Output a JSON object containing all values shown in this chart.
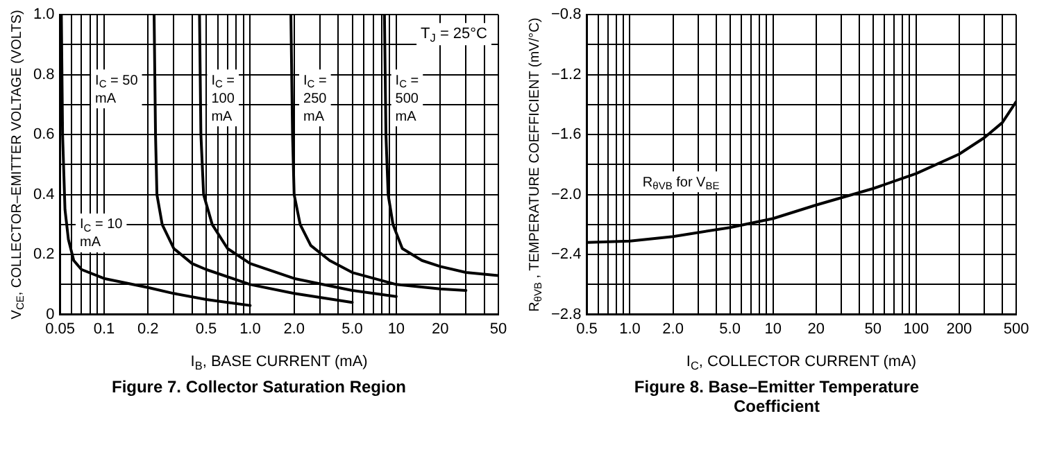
{
  "chart_data": [
    {
      "type": "line",
      "title": "Figure 7. Collector Saturation Region",
      "xlabel": "I$_{B}$, BASE CURRENT (mA)",
      "ylabel": "V$_{CE}$, COLLECTOR–EMITTER VOLTAGE (VOLTS)",
      "log": "x",
      "grid": true,
      "legend": false,
      "xlim": [
        0.05,
        50
      ],
      "xticks": [
        0.05,
        {
          "value": 0.06,
          "label": null
        },
        {
          "value": 0.07,
          "label": null
        },
        {
          "value": 0.08,
          "label": null
        },
        {
          "value": 0.09,
          "label": null
        },
        0.1,
        0.2,
        {
          "value": 0.3,
          "label": null
        },
        {
          "value": 0.4,
          "label": null
        },
        0.5,
        {
          "value": 0.6,
          "label": null
        },
        {
          "value": 0.7,
          "label": null
        },
        {
          "value": 0.8,
          "label": null
        },
        {
          "value": 0.9,
          "label": null
        },
        {
          "value": 1,
          "label": "1.0"
        },
        {
          "value": 2,
          "label": "2.0"
        },
        {
          "value": 3,
          "label": null
        },
        {
          "value": 4,
          "label": null
        },
        {
          "value": 5,
          "label": "5.0"
        },
        {
          "value": 6,
          "label": null
        },
        {
          "value": 7,
          "label": null
        },
        {
          "value": 8,
          "label": null
        },
        {
          "value": 9,
          "label": null
        },
        10,
        20,
        {
          "value": 30,
          "label": null
        },
        {
          "value": 40,
          "label": null
        },
        50
      ],
      "ylim": [
        0,
        1
      ],
      "yticks": [
        0,
        {
          "value": 0.1,
          "label": null
        },
        0.2,
        {
          "value": 0.3,
          "label": null
        },
        0.4,
        {
          "value": 0.5,
          "label": null
        },
        0.6,
        {
          "value": 0.7,
          "label": null
        },
        0.8,
        {
          "value": 0.9,
          "label": null
        },
        {
          "value": 1,
          "label": "1.0"
        }
      ],
      "annotations": [
        "T$_{J}$ = 25°C"
      ],
      "series": [
        {
          "name": "I$_{C}$ = 10 mA",
          "color": "#000000",
          "x": [
            0.051,
            0.052,
            0.054,
            0.057,
            0.062,
            0.07,
            0.1,
            0.2,
            0.3,
            0.5,
            0.7,
            1.0
          ],
          "values": [
            1.0,
            0.6,
            0.35,
            0.25,
            0.18,
            0.15,
            0.12,
            0.09,
            0.07,
            0.05,
            0.04,
            0.03
          ]
        },
        {
          "name": "I$_{C}$ = 50 mA",
          "color": "#000000",
          "x": [
            0.22,
            0.225,
            0.23,
            0.25,
            0.3,
            0.4,
            0.5,
            1.0,
            2.0,
            5.0
          ],
          "values": [
            1.0,
            0.6,
            0.4,
            0.3,
            0.22,
            0.17,
            0.15,
            0.1,
            0.07,
            0.04
          ]
        },
        {
          "name": "I$_{C}$ = 100 mA",
          "color": "#000000",
          "x": [
            0.45,
            0.46,
            0.48,
            0.55,
            0.7,
            1.0,
            2.0,
            5.0,
            10
          ],
          "values": [
            1.0,
            0.6,
            0.4,
            0.3,
            0.22,
            0.17,
            0.12,
            0.08,
            0.06
          ]
        },
        {
          "name": "I$_{C}$ = 250 mA",
          "color": "#000000",
          "x": [
            1.9,
            1.95,
            2.0,
            2.2,
            2.6,
            3.5,
            5,
            10,
            20,
            30
          ],
          "values": [
            1.0,
            0.6,
            0.4,
            0.3,
            0.23,
            0.18,
            0.14,
            0.1,
            0.085,
            0.08
          ]
        },
        {
          "name": "I$_{C}$ = 500 mA",
          "color": "#000000",
          "x": [
            8.3,
            8.5,
            8.8,
            9.5,
            11,
            15,
            20,
            30,
            50
          ],
          "values": [
            1.0,
            0.6,
            0.4,
            0.3,
            0.22,
            0.18,
            0.16,
            0.14,
            0.13
          ]
        }
      ]
    },
    {
      "type": "line",
      "title": "Figure 8. Base–Emitter Temperature Coefficient",
      "xlabel": "I$_{C}$, COLLECTOR CURRENT (mA)",
      "ylabel": "R$_{θVB}$ , TEMPERATURE COEFFICIENT (mV/°C)",
      "log": "x",
      "grid": true,
      "legend": false,
      "xlim": [
        0.5,
        500
      ],
      "xticks": [
        0.5,
        {
          "value": 0.6,
          "label": null
        },
        {
          "value": 0.7,
          "label": null
        },
        {
          "value": 0.8,
          "label": null
        },
        {
          "value": 0.9,
          "label": null
        },
        {
          "value": 1,
          "label": "1.0"
        },
        {
          "value": 2,
          "label": "2.0"
        },
        {
          "value": 3,
          "label": null
        },
        {
          "value": 4,
          "label": null
        },
        {
          "value": 5,
          "label": "5.0"
        },
        {
          "value": 6,
          "label": null
        },
        {
          "value": 7,
          "label": null
        },
        {
          "value": 8,
          "label": null
        },
        {
          "value": 9,
          "label": null
        },
        10,
        20,
        {
          "value": 30,
          "label": null
        },
        {
          "value": 40,
          "label": null
        },
        50,
        {
          "value": 60,
          "label": null
        },
        {
          "value": 70,
          "label": null
        },
        {
          "value": 80,
          "label": null
        },
        {
          "value": 90,
          "label": null
        },
        100,
        200,
        {
          "value": 300,
          "label": null
        },
        {
          "value": 400,
          "label": null
        },
        500
      ],
      "ylim": [
        -2.8,
        -0.8
      ],
      "yticks": [
        {
          "value": -2.8,
          "label": "−2.8"
        },
        {
          "value": -2.6,
          "label": null
        },
        {
          "value": -2.4,
          "label": "−2.4"
        },
        {
          "value": -2.2,
          "label": null
        },
        {
          "value": -2.0,
          "label": "−2.0"
        },
        {
          "value": -1.8,
          "label": null
        },
        {
          "value": -1.6,
          "label": "−1.6"
        },
        {
          "value": -1.4,
          "label": null
        },
        {
          "value": -1.2,
          "label": "−1.2"
        },
        {
          "value": -1.0,
          "label": null
        },
        {
          "value": -0.8,
          "label": "−0.8"
        }
      ],
      "series": [
        {
          "name": "R$_{θVB}$ for V$_{BE}$",
          "color": "#000000",
          "x": [
            0.5,
            1,
            2,
            5,
            10,
            20,
            50,
            100,
            200,
            300,
            400,
            500
          ],
          "values": [
            -2.32,
            -2.31,
            -2.28,
            -2.22,
            -2.16,
            -2.07,
            -1.96,
            -1.86,
            -1.73,
            -1.62,
            -1.52,
            -1.38
          ]
        }
      ]
    }
  ]
}
